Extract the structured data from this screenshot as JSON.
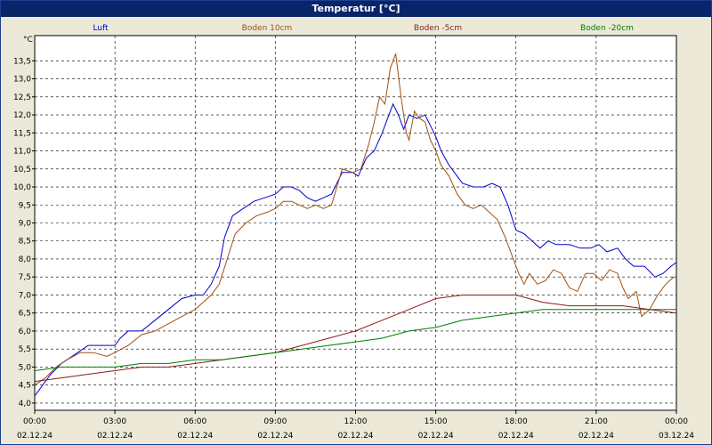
{
  "window": {
    "title": "Temperatur [°C]"
  },
  "chart_data": {
    "type": "line",
    "title": "",
    "ylabel": "°C",
    "xlabel": "",
    "ylim": [
      3.8,
      14.2
    ],
    "xlim": [
      0,
      24
    ],
    "y_ticks": [
      4.0,
      4.5,
      5.0,
      5.5,
      6.0,
      6.5,
      7.0,
      7.5,
      8.0,
      8.5,
      9.0,
      9.5,
      10.0,
      10.5,
      11.0,
      11.5,
      12.0,
      12.5,
      13.0,
      13.5
    ],
    "y_tick_labels": [
      "4,0",
      "4,5",
      "5,0",
      "5,5",
      "6,0",
      "6,5",
      "7,0",
      "7,5",
      "8,0",
      "8,5",
      "9,0",
      "9,5",
      "10,0",
      "10,5",
      "11,0",
      "11,5",
      "12,0",
      "12,5",
      "13,0",
      "13,5"
    ],
    "x_ticks": [
      0,
      3,
      6,
      9,
      12,
      15,
      18,
      21,
      24
    ],
    "x_tick_labels": [
      {
        "time": "00:00",
        "date": "02.12.24"
      },
      {
        "time": "03:00",
        "date": "02.12.24"
      },
      {
        "time": "06:00",
        "date": "02.12.24"
      },
      {
        "time": "09:00",
        "date": "02.12.24"
      },
      {
        "time": "12:00",
        "date": "02.12.24"
      },
      {
        "time": "15:00",
        "date": "02.12.24"
      },
      {
        "time": "18:00",
        "date": "02.12.24"
      },
      {
        "time": "21:00",
        "date": "02.12.24"
      },
      {
        "time": "00:00",
        "date": "03.12.24"
      }
    ],
    "grid": true,
    "legend_position": "top",
    "series": [
      {
        "name": "Luft",
        "color": "#0000cc",
        "points": [
          [
            0,
            4.2
          ],
          [
            0.3,
            4.5
          ],
          [
            0.6,
            4.8
          ],
          [
            1,
            5.1
          ],
          [
            1.4,
            5.3
          ],
          [
            1.8,
            5.5
          ],
          [
            2,
            5.6
          ],
          [
            2.7,
            5.6
          ],
          [
            3,
            5.6
          ],
          [
            3.2,
            5.8
          ],
          [
            3.5,
            6.0
          ],
          [
            4,
            6.0
          ],
          [
            4.5,
            6.3
          ],
          [
            5,
            6.6
          ],
          [
            5.5,
            6.9
          ],
          [
            6,
            7.0
          ],
          [
            6.3,
            7.0
          ],
          [
            6.6,
            7.3
          ],
          [
            6.9,
            7.8
          ],
          [
            7.1,
            8.6
          ],
          [
            7.4,
            9.2
          ],
          [
            7.8,
            9.4
          ],
          [
            8.2,
            9.6
          ],
          [
            8.6,
            9.7
          ],
          [
            9,
            9.8
          ],
          [
            9.3,
            10.0
          ],
          [
            9.6,
            10.0
          ],
          [
            9.9,
            9.9
          ],
          [
            10.2,
            9.7
          ],
          [
            10.5,
            9.6
          ],
          [
            10.8,
            9.7
          ],
          [
            11.1,
            9.8
          ],
          [
            11.5,
            10.4
          ],
          [
            11.9,
            10.4
          ],
          [
            12.1,
            10.3
          ],
          [
            12.4,
            10.8
          ],
          [
            12.7,
            11.0
          ],
          [
            13,
            11.5
          ],
          [
            13.2,
            11.9
          ],
          [
            13.4,
            12.3
          ],
          [
            13.6,
            12.0
          ],
          [
            13.8,
            11.6
          ],
          [
            14,
            12.0
          ],
          [
            14.3,
            11.9
          ],
          [
            14.6,
            12.0
          ],
          [
            14.8,
            11.7
          ],
          [
            15,
            11.4
          ],
          [
            15.2,
            11.0
          ],
          [
            15.5,
            10.6
          ],
          [
            15.8,
            10.3
          ],
          [
            16,
            10.1
          ],
          [
            16.4,
            10.0
          ],
          [
            16.8,
            10.0
          ],
          [
            17.1,
            10.1
          ],
          [
            17.4,
            10.0
          ],
          [
            17.7,
            9.5
          ],
          [
            18,
            8.8
          ],
          [
            18.3,
            8.7
          ],
          [
            18.6,
            8.5
          ],
          [
            18.9,
            8.3
          ],
          [
            19.2,
            8.5
          ],
          [
            19.5,
            8.4
          ],
          [
            20,
            8.4
          ],
          [
            20.4,
            8.3
          ],
          [
            20.8,
            8.3
          ],
          [
            21.1,
            8.4
          ],
          [
            21.4,
            8.2
          ],
          [
            21.8,
            8.3
          ],
          [
            22.1,
            8.0
          ],
          [
            22.4,
            7.8
          ],
          [
            22.8,
            7.8
          ],
          [
            23.2,
            7.5
          ],
          [
            23.5,
            7.6
          ],
          [
            23.8,
            7.8
          ],
          [
            24,
            7.9
          ]
        ]
      },
      {
        "name": "Boden 10cm",
        "color": "#a05010",
        "points": [
          [
            0,
            4.5
          ],
          [
            0.4,
            4.7
          ],
          [
            0.8,
            5.0
          ],
          [
            1.2,
            5.2
          ],
          [
            1.7,
            5.4
          ],
          [
            2.2,
            5.4
          ],
          [
            2.7,
            5.3
          ],
          [
            3,
            5.4
          ],
          [
            3.5,
            5.6
          ],
          [
            4,
            5.9
          ],
          [
            4.5,
            6.0
          ],
          [
            5,
            6.2
          ],
          [
            5.5,
            6.4
          ],
          [
            6,
            6.6
          ],
          [
            6.3,
            6.8
          ],
          [
            6.6,
            7.0
          ],
          [
            6.9,
            7.3
          ],
          [
            7.2,
            8.0
          ],
          [
            7.5,
            8.7
          ],
          [
            7.9,
            9.0
          ],
          [
            8.3,
            9.2
          ],
          [
            8.7,
            9.3
          ],
          [
            9,
            9.4
          ],
          [
            9.3,
            9.6
          ],
          [
            9.6,
            9.6
          ],
          [
            9.9,
            9.5
          ],
          [
            10.2,
            9.4
          ],
          [
            10.5,
            9.5
          ],
          [
            10.8,
            9.4
          ],
          [
            11.1,
            9.5
          ],
          [
            11.5,
            10.5
          ],
          [
            11.9,
            10.4
          ],
          [
            12.2,
            10.5
          ],
          [
            12.5,
            11.2
          ],
          [
            12.7,
            11.8
          ],
          [
            12.9,
            12.5
          ],
          [
            13.1,
            12.3
          ],
          [
            13.3,
            13.3
          ],
          [
            13.5,
            13.7
          ],
          [
            13.7,
            12.5
          ],
          [
            13.9,
            11.5
          ],
          [
            14,
            11.3
          ],
          [
            14.2,
            12.1
          ],
          [
            14.4,
            11.9
          ],
          [
            14.6,
            11.8
          ],
          [
            14.8,
            11.3
          ],
          [
            15,
            11.0
          ],
          [
            15.2,
            10.6
          ],
          [
            15.5,
            10.3
          ],
          [
            15.8,
            9.8
          ],
          [
            16.1,
            9.5
          ],
          [
            16.4,
            9.4
          ],
          [
            16.7,
            9.5
          ],
          [
            17,
            9.3
          ],
          [
            17.3,
            9.1
          ],
          [
            17.6,
            8.6
          ],
          [
            17.9,
            8.0
          ],
          [
            18.1,
            7.6
          ],
          [
            18.3,
            7.3
          ],
          [
            18.5,
            7.6
          ],
          [
            18.8,
            7.3
          ],
          [
            19.1,
            7.4
          ],
          [
            19.4,
            7.7
          ],
          [
            19.7,
            7.6
          ],
          [
            20,
            7.2
          ],
          [
            20.3,
            7.1
          ],
          [
            20.6,
            7.6
          ],
          [
            20.9,
            7.6
          ],
          [
            21.2,
            7.4
          ],
          [
            21.5,
            7.7
          ],
          [
            21.8,
            7.6
          ],
          [
            22,
            7.2
          ],
          [
            22.2,
            6.9
          ],
          [
            22.5,
            7.1
          ],
          [
            22.7,
            6.4
          ],
          [
            23,
            6.6
          ],
          [
            23.3,
            7.0
          ],
          [
            23.6,
            7.3
          ],
          [
            23.9,
            7.5
          ],
          [
            24,
            7.5
          ]
        ]
      },
      {
        "name": "Boden -5cm",
        "color": "#8b1a1a",
        "points": [
          [
            0,
            4.6
          ],
          [
            1,
            4.7
          ],
          [
            2,
            4.8
          ],
          [
            3,
            4.9
          ],
          [
            4,
            5.0
          ],
          [
            5,
            5.0
          ],
          [
            6,
            5.1
          ],
          [
            7,
            5.2
          ],
          [
            8,
            5.3
          ],
          [
            9,
            5.4
          ],
          [
            10,
            5.6
          ],
          [
            11,
            5.8
          ],
          [
            12,
            6.0
          ],
          [
            13,
            6.3
          ],
          [
            14,
            6.6
          ],
          [
            15,
            6.9
          ],
          [
            16,
            7.0
          ],
          [
            17,
            7.0
          ],
          [
            18,
            7.0
          ],
          [
            19,
            6.8
          ],
          [
            20,
            6.7
          ],
          [
            21,
            6.7
          ],
          [
            22,
            6.7
          ],
          [
            23,
            6.6
          ],
          [
            24,
            6.5
          ]
        ]
      },
      {
        "name": "Boden -20cm",
        "color": "#008000",
        "points": [
          [
            0,
            4.9
          ],
          [
            1,
            5.0
          ],
          [
            2,
            5.0
          ],
          [
            3,
            5.0
          ],
          [
            4,
            5.1
          ],
          [
            5,
            5.1
          ],
          [
            6,
            5.2
          ],
          [
            7,
            5.2
          ],
          [
            8,
            5.3
          ],
          [
            9,
            5.4
          ],
          [
            10,
            5.5
          ],
          [
            11,
            5.6
          ],
          [
            12,
            5.7
          ],
          [
            13,
            5.8
          ],
          [
            14,
            6.0
          ],
          [
            15,
            6.1
          ],
          [
            16,
            6.3
          ],
          [
            17,
            6.4
          ],
          [
            18,
            6.5
          ],
          [
            19,
            6.6
          ],
          [
            20,
            6.6
          ],
          [
            21,
            6.6
          ],
          [
            22,
            6.6
          ],
          [
            23,
            6.6
          ],
          [
            24,
            6.6
          ]
        ]
      }
    ]
  }
}
